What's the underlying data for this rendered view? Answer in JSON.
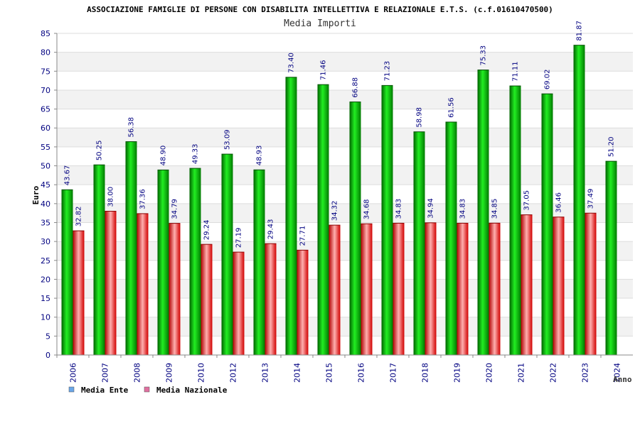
{
  "chart_data": {
    "type": "bar",
    "title": "ASSOCIAZIONE FAMIGLIE DI PERSONE CON DISABILITA INTELLETTIVA E RELAZIONALE E.T.S. (c.f.01610470500)",
    "subtitle": "Media Importi",
    "ylabel": "Euro",
    "xlabel": "Anno",
    "ylim": [
      0,
      85
    ],
    "ytick_step": 5,
    "grid": true,
    "legend_position": "bottom-left",
    "categories": [
      "2006",
      "2007",
      "2008",
      "2009",
      "2010",
      "2012",
      "2013",
      "2014",
      "2015",
      "2016",
      "2017",
      "2018",
      "2019",
      "2020",
      "2021",
      "2022",
      "2023",
      "2024"
    ],
    "series": [
      {
        "name": "Media Ente",
        "color": "#00c000",
        "legend_color": "#6aa6e8",
        "values": [
          43.67,
          50.25,
          56.38,
          48.9,
          49.33,
          53.09,
          48.93,
          73.4,
          71.46,
          66.88,
          71.23,
          58.98,
          61.56,
          75.33,
          71.11,
          69.02,
          81.87,
          51.2
        ],
        "labels": [
          "43.67",
          "50.25",
          "56.38",
          "48.90",
          "49.33",
          "53.09",
          "48.93",
          "73.40",
          "71.46",
          "66.88",
          "71.23",
          "58.98",
          "61.56",
          "75.33",
          "71.11",
          "69.02",
          "81.87",
          "51.20"
        ]
      },
      {
        "name": "Media Nazionale",
        "color": "#e01010",
        "legend_color": "#e070a0",
        "values": [
          32.82,
          38.0,
          37.36,
          34.79,
          29.24,
          27.19,
          29.43,
          27.71,
          34.32,
          34.68,
          34.83,
          34.94,
          34.83,
          34.85,
          37.05,
          36.46,
          37.49,
          null
        ],
        "labels": [
          "32.82",
          "38.00",
          "37.36",
          "34.79",
          "29.24",
          "27.19",
          "29.43",
          "27.71",
          "34.32",
          "34.68",
          "34.83",
          "34.94",
          "34.83",
          "34.85",
          "37.05",
          "36.46",
          "37.49",
          null
        ]
      }
    ]
  }
}
